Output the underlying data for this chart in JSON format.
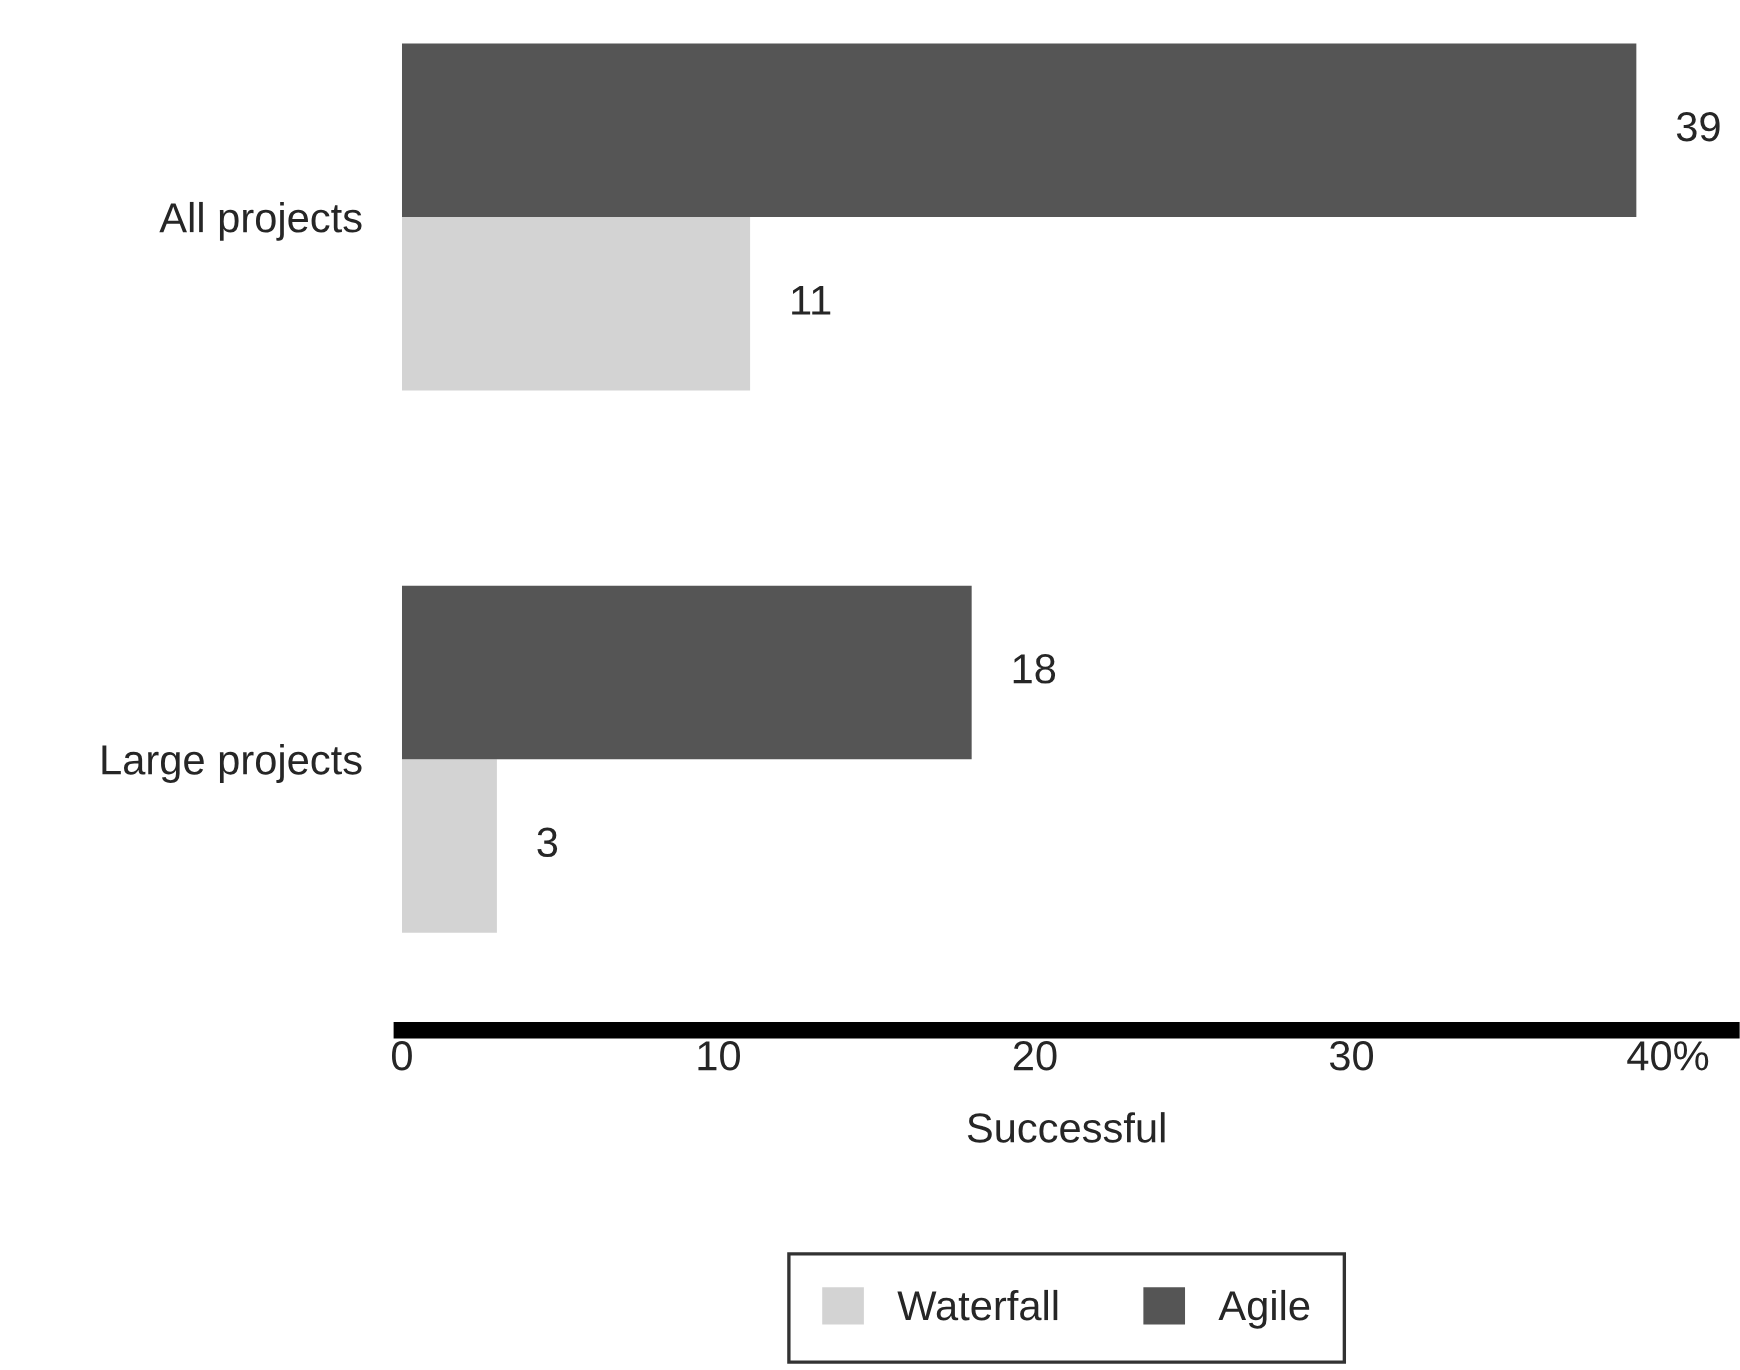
{
  "chart_data": {
    "type": "bar",
    "orientation": "horizontal",
    "xlabel": "Successful",
    "categories": [
      "All projects",
      "Large projects"
    ],
    "series": [
      {
        "name": "Waterfall",
        "color": "#d3d3d3",
        "values": [
          11,
          3
        ]
      },
      {
        "name": "Agile",
        "color": "#555555",
        "values": [
          39,
          18
        ]
      }
    ],
    "xlim": [
      0,
      42
    ],
    "xticks": [
      0,
      10,
      20,
      30,
      {
        "value": 40,
        "label": "40%"
      }
    ],
    "data_labels": true,
    "grid": false,
    "legend": "bottom"
  }
}
